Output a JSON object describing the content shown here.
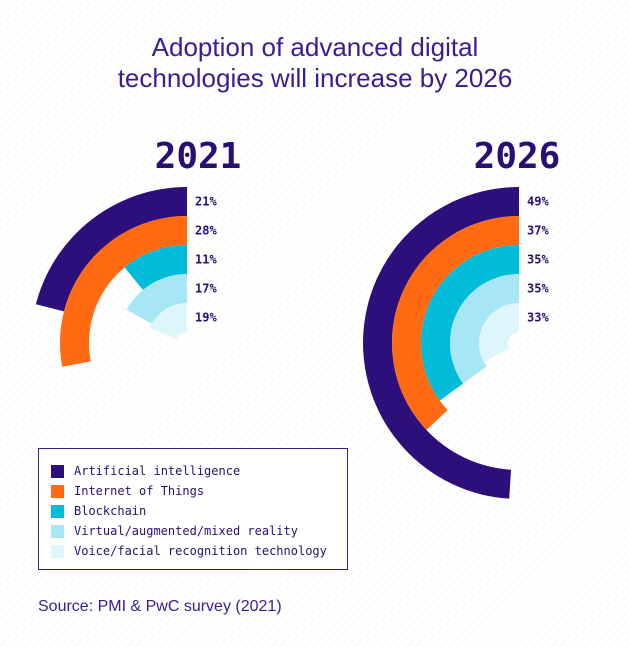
{
  "title": {
    "line1": "Adoption of advanced digital",
    "line2": "technologies will increase by 2026"
  },
  "source": "Source: PMI & PwC survey (2021)",
  "chart_data": {
    "type": "radial-bar",
    "title": "Adoption of advanced digital technologies will increase by 2026",
    "categories": [
      "Artificial intelligence",
      "Internet of Things",
      "Blockchain",
      "Virtual/augmented/mixed reality",
      "Voice/facial recognition technology"
    ],
    "colors": [
      "#2c0f7a",
      "#ff6a13",
      "#00bcd9",
      "#a6e6f5",
      "#ddf6fb"
    ],
    "series": [
      {
        "name": "2021",
        "values": [
          21,
          28,
          11,
          17,
          19
        ],
        "labels": [
          "21%",
          "28%",
          "11%",
          "17%",
          "19%"
        ]
      },
      {
        "name": "2026",
        "values": [
          49,
          37,
          35,
          35,
          33
        ],
        "labels": [
          "49%",
          "37%",
          "35%",
          "35%",
          "33%"
        ]
      }
    ],
    "scale_max": 100,
    "legend_position": "bottom-left"
  }
}
